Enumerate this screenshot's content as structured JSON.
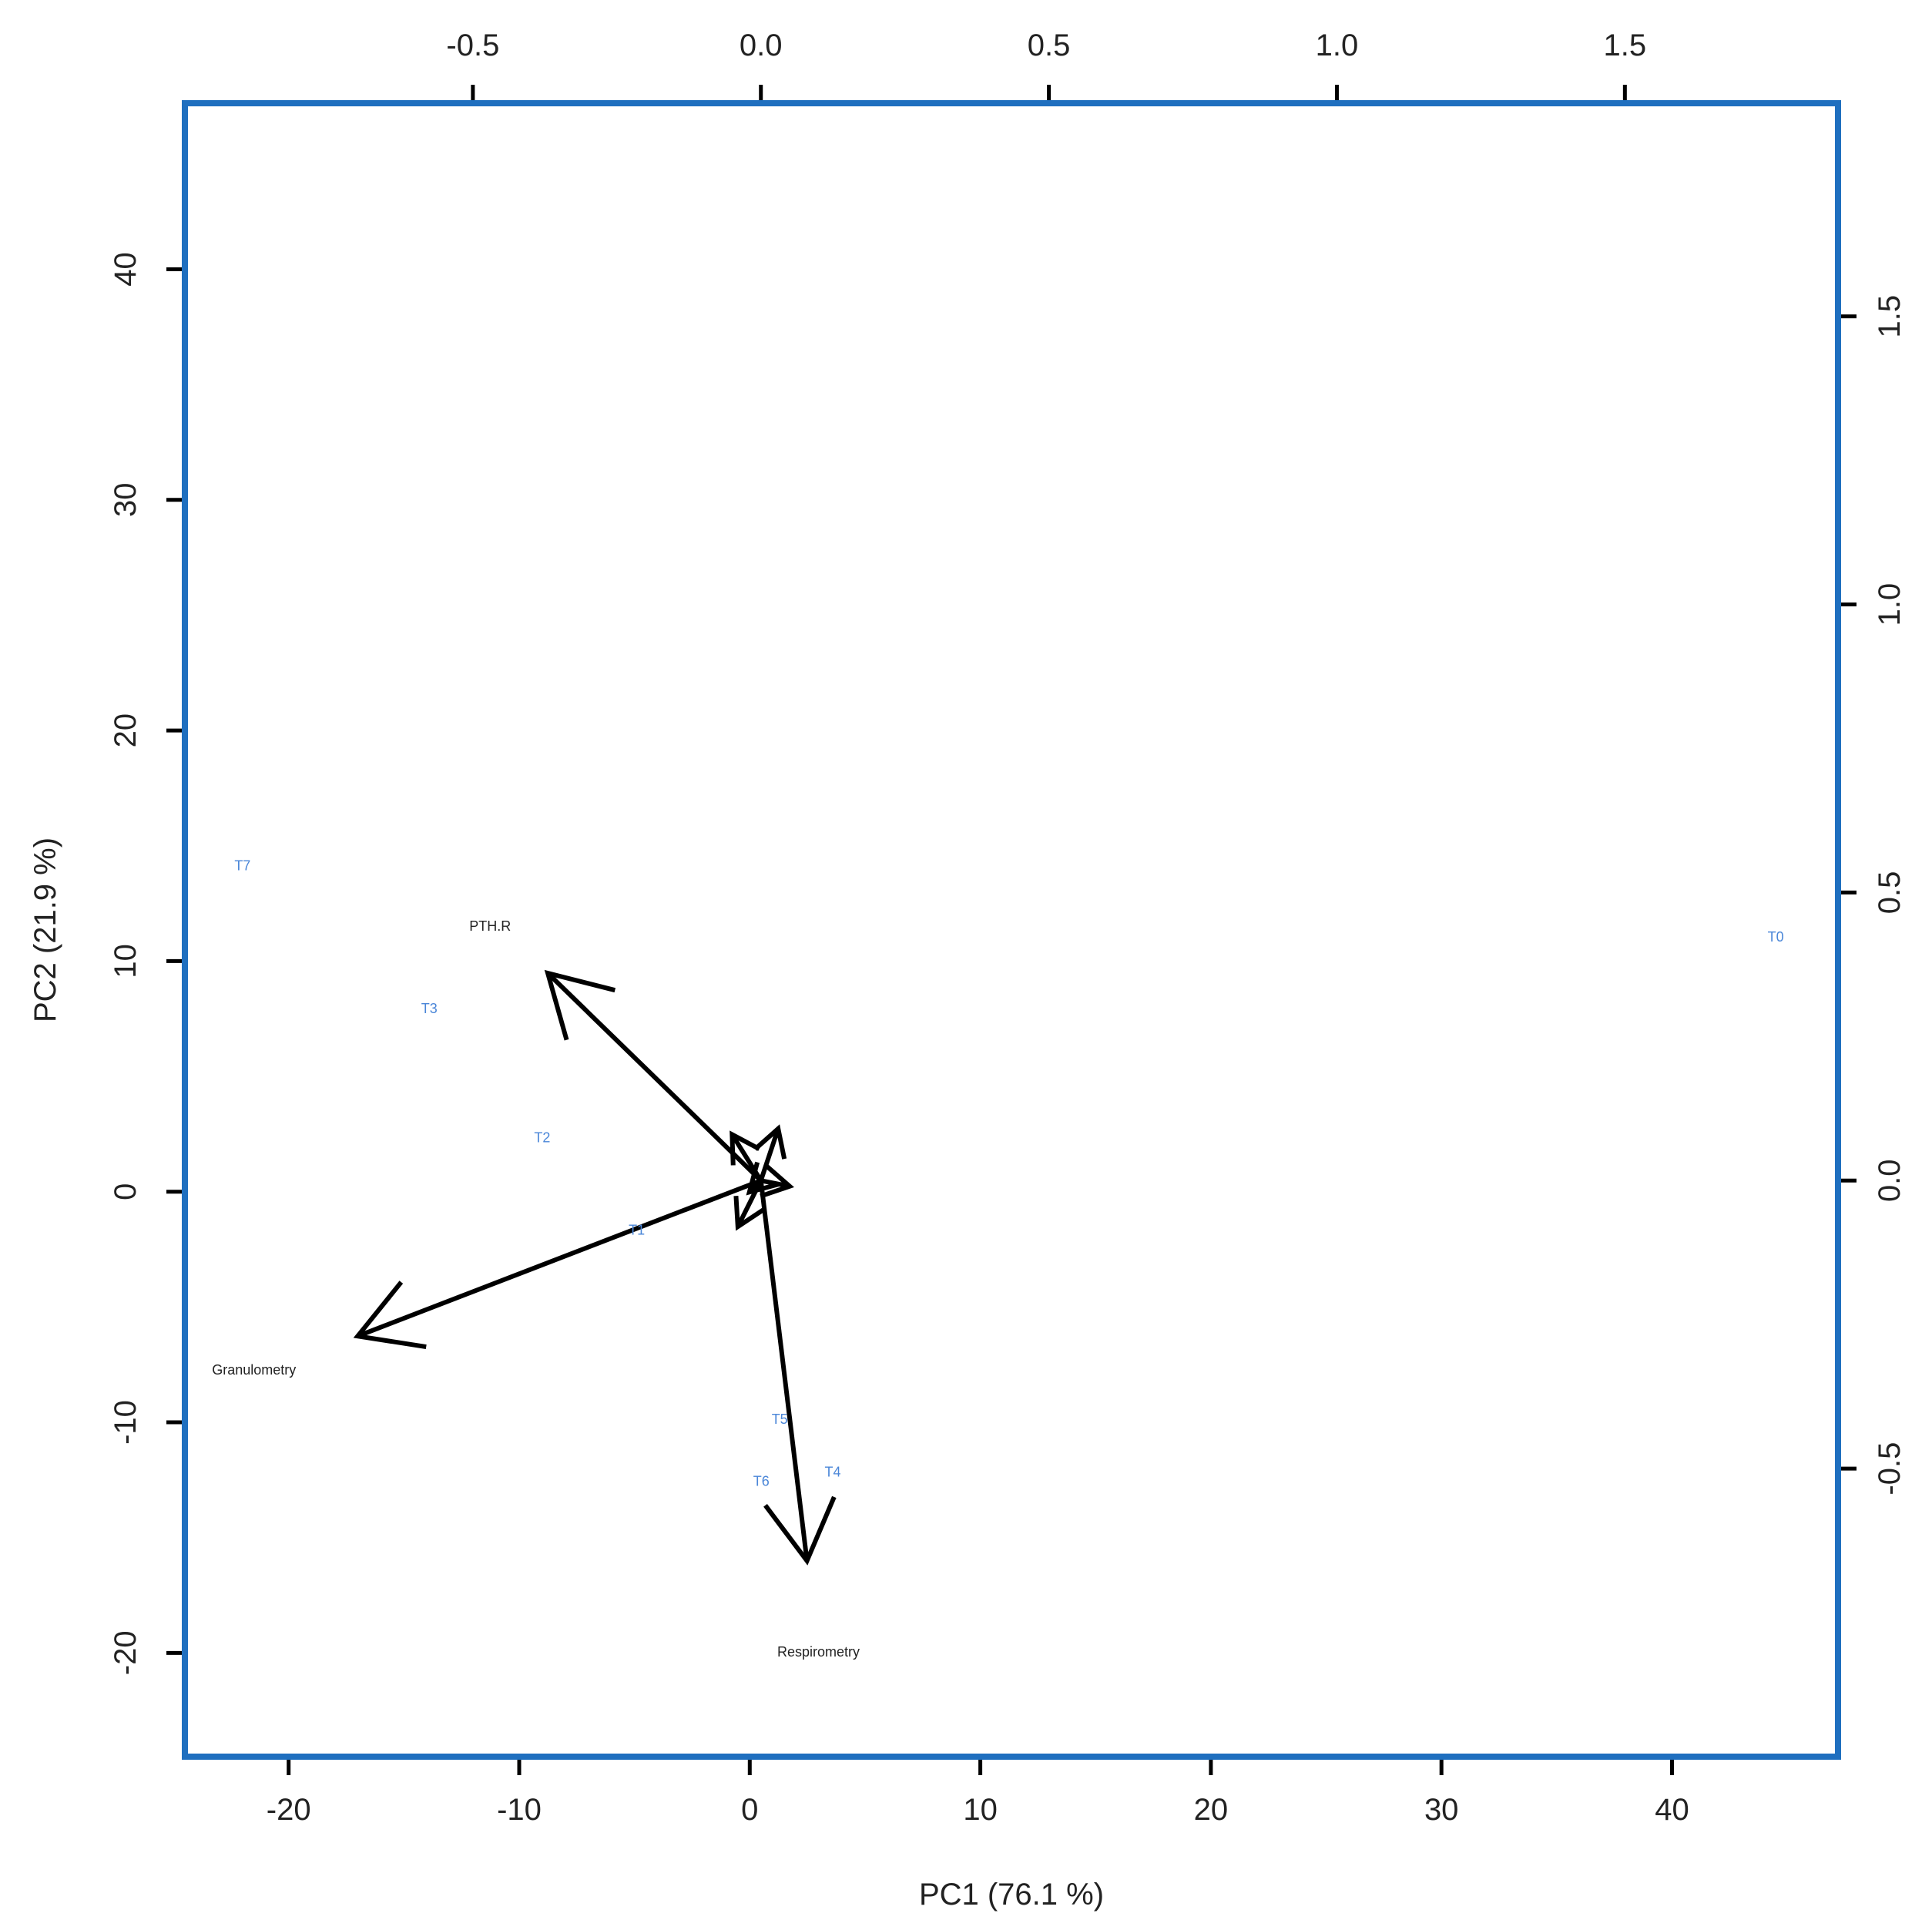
{
  "chart_data": {
    "type": "scatter",
    "subtype": "biplot",
    "xlabel": "PC1 (76.1 %)",
    "ylabel": "PC2 (21.9 %)",
    "primary_axes": {
      "x_ticks": [
        -20,
        -10,
        0,
        10,
        20,
        30,
        40
      ],
      "y_ticks": [
        -20,
        -10,
        0,
        10,
        20,
        30,
        40
      ],
      "xlim": [
        -24.5,
        47.2
      ],
      "ylim": [
        -24.5,
        47.2
      ]
    },
    "secondary_axes": {
      "x_ticks": [
        -0.5,
        0.0,
        0.5,
        1.0,
        1.5
      ],
      "x_tick_labels": [
        "-0.5",
        "0.0",
        "0.5",
        "1.0",
        "1.5"
      ],
      "y_ticks": [
        -0.5,
        0.0,
        0.5,
        1.0,
        1.5
      ],
      "y_tick_labels": [
        "-0.5",
        "0.0",
        "0.5",
        "1.0",
        "1.5"
      ],
      "xlim": [
        -1.0,
        1.87
      ],
      "ylim": [
        -1.0,
        1.87
      ]
    },
    "observations": [
      {
        "label": "T7",
        "x": -22.0,
        "y": 14.1
      },
      {
        "label": "T3",
        "x": -13.9,
        "y": 7.9
      },
      {
        "label": "T2",
        "x": -9.0,
        "y": 2.3
      },
      {
        "label": "T1",
        "x": -4.9,
        "y": -1.7
      },
      {
        "label": "T5",
        "x": 1.3,
        "y": -9.9
      },
      {
        "label": "T6",
        "x": 0.5,
        "y": -12.6
      },
      {
        "label": "T4",
        "x": 3.6,
        "y": -12.2
      },
      {
        "label": "T0",
        "x": 44.5,
        "y": 11.0
      }
    ],
    "loadings": [
      {
        "label": "PTH.R",
        "x": -0.37,
        "y": 0.36,
        "label_x": -0.47,
        "label_y": 0.44
      },
      {
        "label": "Granulometry",
        "x": -0.7,
        "y": -0.27,
        "label_x": -0.88,
        "label_y": -0.33
      },
      {
        "label": "Respirometry",
        "x": 0.08,
        "y": -0.66,
        "label_x": 0.1,
        "label_y": -0.82
      },
      {
        "label": "",
        "x": -0.05,
        "y": 0.08
      },
      {
        "label": "",
        "x": 0.03,
        "y": 0.09
      },
      {
        "label": "",
        "x": 0.05,
        "y": -0.01
      },
      {
        "label": "",
        "x": -0.04,
        "y": -0.08
      },
      {
        "label": "",
        "x": -0.02,
        "y": -0.02
      }
    ],
    "colors": {
      "frame": "#1f6fbf",
      "observation_text": "#4a86d8",
      "arrows": "#000000",
      "variable_text": "#222222",
      "ticks": "#000000"
    },
    "grid": false,
    "legend": "none"
  }
}
